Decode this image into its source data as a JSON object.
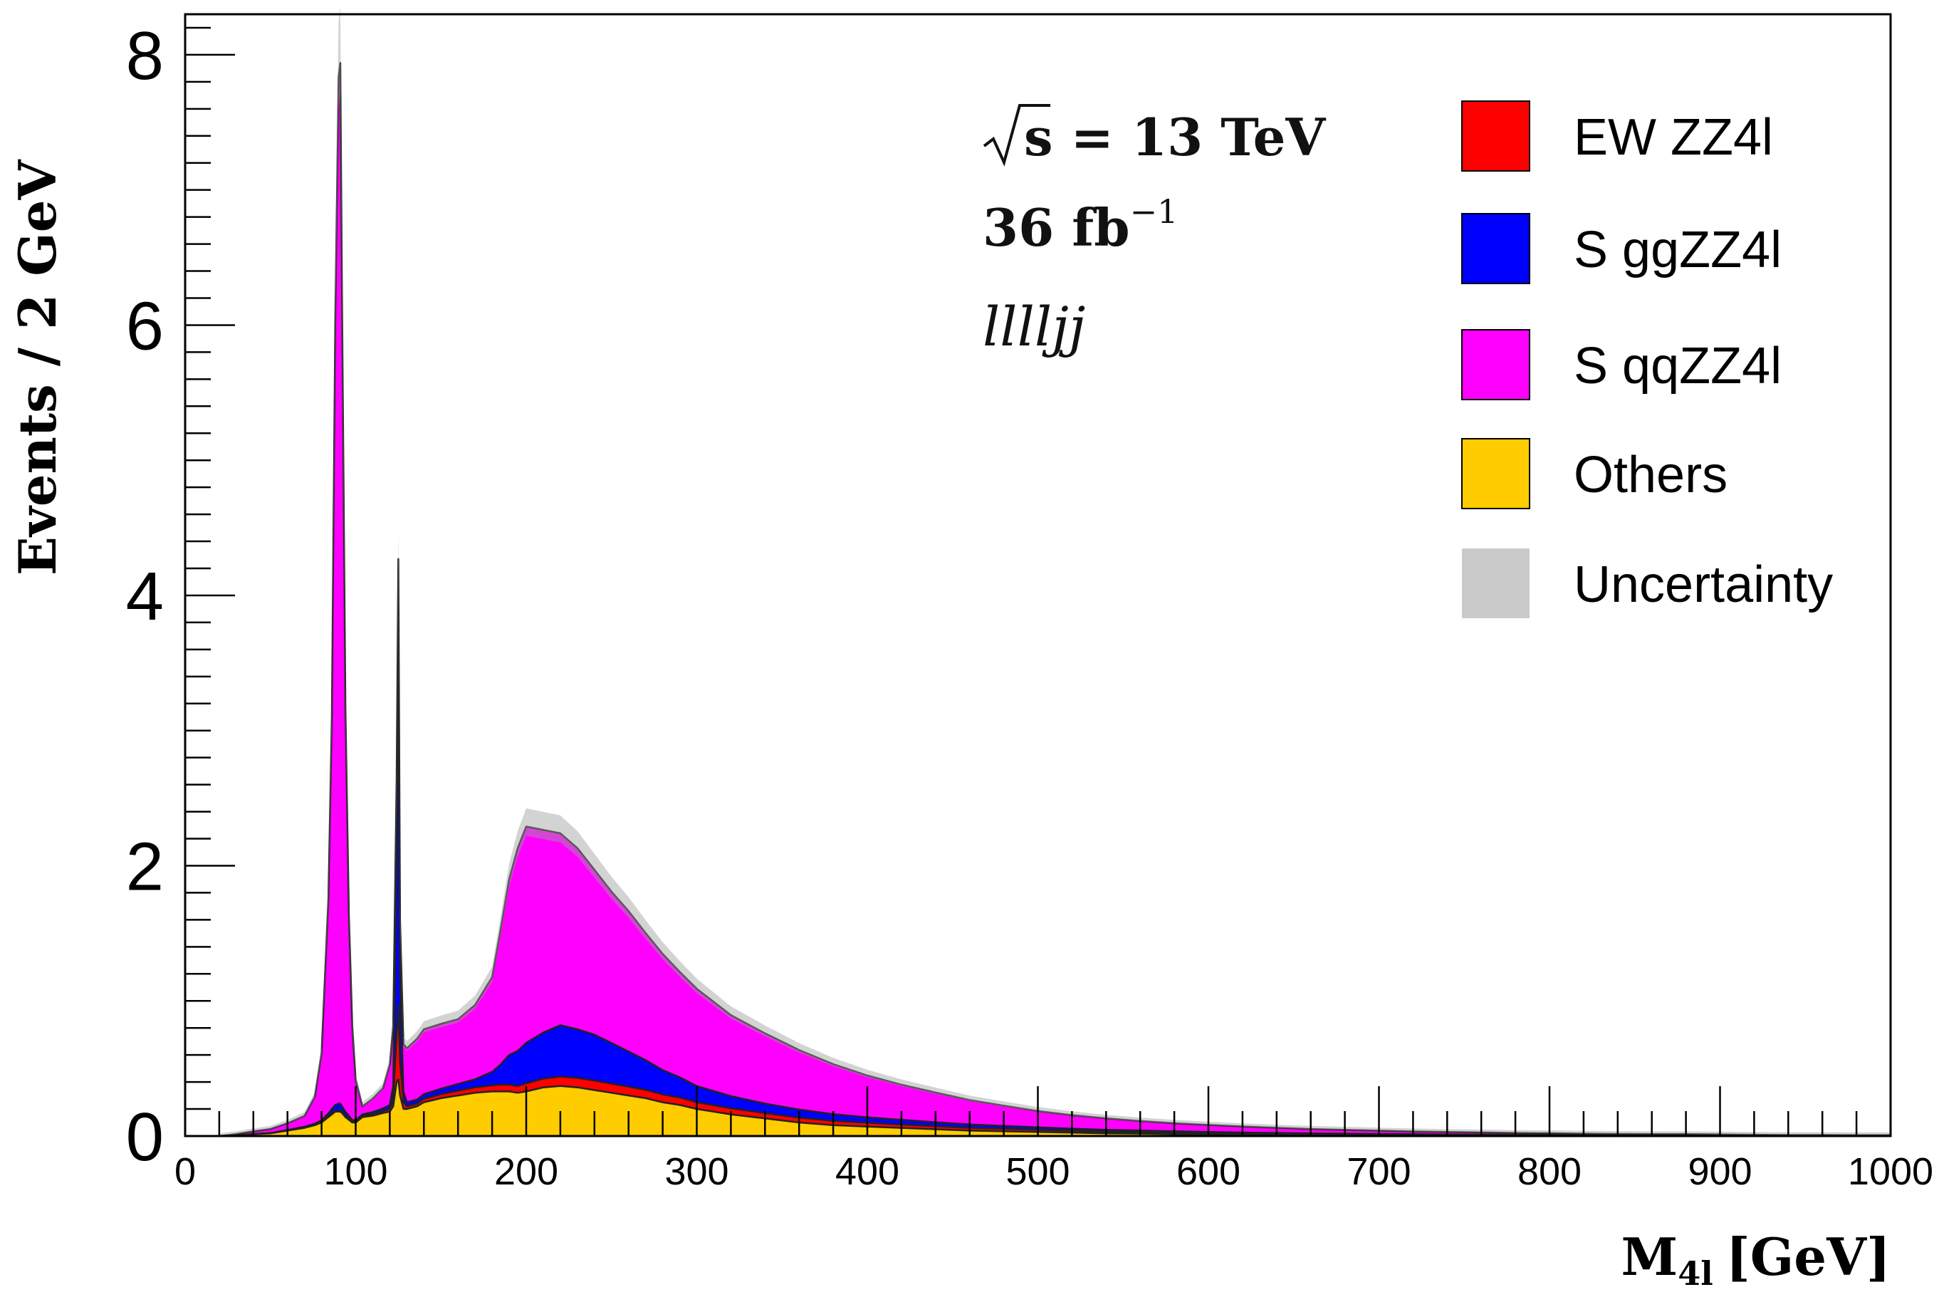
{
  "chart_data": {
    "type": "area",
    "stacked": true,
    "xlabel_main": "M",
    "xlabel_sub": "4l",
    "xlabel_unit": "[GeV]",
    "ylabel": "Events / 2 GeV",
    "xlim": [
      0,
      1000
    ],
    "ylim": [
      0,
      8.3
    ],
    "x_ticks": [
      0,
      100,
      200,
      300,
      400,
      500,
      600,
      700,
      800,
      900,
      1000
    ],
    "y_ticks": [
      0,
      2,
      4,
      6,
      8
    ],
    "annotations": {
      "energy_prefix": "s",
      "energy_value": " = 13 TeV",
      "lumi": "36 fb",
      "lumi_exp": "−1",
      "channel": "llllјј"
    },
    "legend_position": "top-right",
    "legend": [
      {
        "label": "EW ZZ4l",
        "color": "#ff0000"
      },
      {
        "label": "S ggZZ4l",
        "color": "#0000ff"
      },
      {
        "label": "S qqZZ4l",
        "color": "#ff00ff"
      },
      {
        "label": "Others",
        "color": "#ffcc00"
      },
      {
        "label": "Uncertainty",
        "color": "#bdbdbd"
      }
    ],
    "x": [
      20,
      30,
      40,
      50,
      60,
      70,
      76,
      80,
      84,
      86,
      88,
      90,
      91,
      92,
      94,
      96,
      98,
      100,
      104,
      110,
      116,
      120,
      122,
      124,
      125,
      126,
      128,
      130,
      136,
      140,
      150,
      160,
      170,
      180,
      185,
      190,
      195,
      200,
      210,
      220,
      230,
      240,
      250,
      260,
      270,
      280,
      290,
      300,
      320,
      340,
      360,
      380,
      400,
      420,
      440,
      460,
      480,
      500,
      520,
      540,
      560,
      580,
      600,
      620,
      640,
      660,
      680,
      700,
      720,
      740,
      760,
      780,
      800,
      820,
      840,
      860,
      880,
      900,
      920,
      940,
      960,
      980,
      1000
    ],
    "series": [
      {
        "name": "Others",
        "color": "#ffcc00",
        "values": [
          0,
          0.005,
          0.015,
          0.02,
          0.04,
          0.06,
          0.08,
          0.1,
          0.14,
          0.16,
          0.18,
          0.18,
          0.18,
          0.17,
          0.14,
          0.12,
          0.1,
          0.1,
          0.14,
          0.15,
          0.17,
          0.18,
          0.22,
          0.4,
          0.42,
          0.3,
          0.2,
          0.2,
          0.22,
          0.25,
          0.28,
          0.3,
          0.32,
          0.33,
          0.33,
          0.33,
          0.32,
          0.33,
          0.36,
          0.37,
          0.36,
          0.34,
          0.32,
          0.3,
          0.28,
          0.25,
          0.23,
          0.2,
          0.16,
          0.13,
          0.1,
          0.08,
          0.07,
          0.06,
          0.05,
          0.04,
          0.035,
          0.03,
          0.025,
          0.02,
          0.018,
          0.015,
          0.012,
          0.01,
          0.009,
          0.008,
          0.007,
          0.006,
          0.005,
          0.004,
          0.004,
          0.003,
          0.003,
          0.002,
          0.002,
          0.002,
          0.002,
          0.001,
          0.001,
          0.001,
          0.001,
          0.001,
          0.001
        ]
      },
      {
        "name": "EW ZZ4l",
        "color": "#ff0000",
        "values": [
          0,
          0,
          0,
          0.002,
          0.003,
          0.005,
          0.005,
          0.006,
          0.008,
          0.01,
          0.01,
          0.01,
          0.01,
          0.01,
          0.01,
          0.01,
          0.008,
          0.008,
          0.01,
          0.012,
          0.014,
          0.02,
          0.05,
          0.35,
          0.55,
          0.25,
          0.05,
          0.02,
          0.02,
          0.025,
          0.03,
          0.035,
          0.04,
          0.045,
          0.05,
          0.05,
          0.05,
          0.06,
          0.065,
          0.07,
          0.07,
          0.07,
          0.068,
          0.065,
          0.062,
          0.058,
          0.055,
          0.05,
          0.045,
          0.04,
          0.036,
          0.032,
          0.028,
          0.025,
          0.022,
          0.02,
          0.018,
          0.016,
          0.014,
          0.012,
          0.011,
          0.01,
          0.009,
          0.008,
          0.007,
          0.006,
          0.006,
          0.005,
          0.005,
          0.004,
          0.004,
          0.003,
          0.003,
          0.003,
          0.002,
          0.002,
          0.002,
          0.002,
          0.002,
          0.001,
          0.001,
          0.001,
          0.001
        ]
      },
      {
        "name": "S ggZZ4l",
        "color": "#0000ff",
        "values": [
          0,
          0,
          0,
          0,
          0.002,
          0.004,
          0.006,
          0.01,
          0.02,
          0.03,
          0.04,
          0.05,
          0.05,
          0.04,
          0.03,
          0.02,
          0.01,
          0.01,
          0.01,
          0.015,
          0.02,
          0.03,
          0.1,
          1.3,
          2.8,
          0.6,
          0.08,
          0.03,
          0.03,
          0.035,
          0.04,
          0.05,
          0.06,
          0.1,
          0.15,
          0.22,
          0.26,
          0.3,
          0.34,
          0.38,
          0.36,
          0.34,
          0.3,
          0.26,
          0.22,
          0.18,
          0.15,
          0.12,
          0.09,
          0.07,
          0.06,
          0.05,
          0.04,
          0.035,
          0.03,
          0.026,
          0.022,
          0.019,
          0.016,
          0.014,
          0.012,
          0.01,
          0.009,
          0.008,
          0.007,
          0.006,
          0.005,
          0.005,
          0.004,
          0.004,
          0.003,
          0.003,
          0.003,
          0.002,
          0.002,
          0.002,
          0.002,
          0.002,
          0.001,
          0.001,
          0.001,
          0.001,
          0.001
        ]
      },
      {
        "name": "S qqZZ4l",
        "color": "#ff00ff",
        "values": [
          0,
          0.01,
          0.02,
          0.03,
          0.05,
          0.08,
          0.2,
          0.5,
          1.6,
          2.9,
          5.8,
          7.6,
          7.7,
          6.0,
          3.0,
          1.5,
          0.7,
          0.3,
          0.06,
          0.1,
          0.15,
          0.3,
          0.45,
          0.6,
          0.5,
          0.45,
          0.35,
          0.4,
          0.45,
          0.48,
          0.48,
          0.48,
          0.55,
          0.7,
          1.0,
          1.3,
          1.5,
          1.6,
          1.5,
          1.42,
          1.34,
          1.22,
          1.12,
          1.04,
          0.94,
          0.86,
          0.78,
          0.72,
          0.6,
          0.52,
          0.44,
          0.37,
          0.31,
          0.26,
          0.22,
          0.18,
          0.15,
          0.12,
          0.1,
          0.085,
          0.07,
          0.06,
          0.052,
          0.045,
          0.038,
          0.032,
          0.028,
          0.024,
          0.02,
          0.018,
          0.016,
          0.014,
          0.012,
          0.011,
          0.01,
          0.009,
          0.008,
          0.007,
          0.006,
          0.005,
          0.005,
          0.004,
          0.004
        ]
      }
    ]
  }
}
